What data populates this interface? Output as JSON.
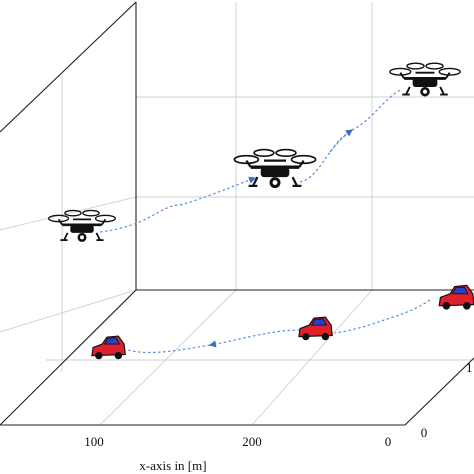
{
  "chart_data": {
    "type": "scatter",
    "projection": "3d",
    "title": "",
    "xlabel": "x-axis in [m]",
    "ylabel": "",
    "zlabel": "",
    "x_ticks": [
      "100",
      "200",
      "0"
    ],
    "y_ticks": [
      "0",
      "1"
    ],
    "grid": true,
    "series": [
      {
        "kind": "drone",
        "icon": "quadcopter-drone-icon",
        "line_color": "#5a8fd8",
        "line_style": "dotted",
        "keyframes": [
          "start",
          "middle",
          "end"
        ]
      },
      {
        "kind": "car",
        "icon": "red-car-icon",
        "color": "#e0202a",
        "line_color": "#5a8fd8",
        "line_style": "dotted",
        "keyframes": [
          "start",
          "middle",
          "end"
        ]
      }
    ]
  }
}
